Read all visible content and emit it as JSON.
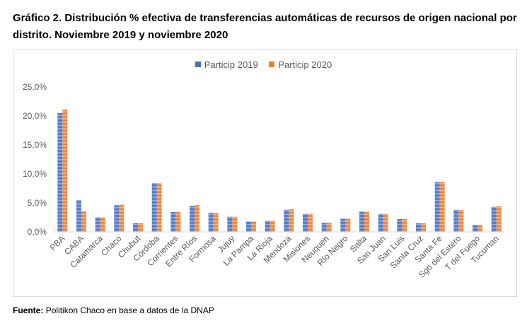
{
  "title": "Gráfico 2. Distribución % efectiva de transferencias automáticas de recursos de origen nacional por distrito. Noviembre 2019 y noviembre 2020",
  "source_label": "Fuente:",
  "source_text": "Politikon Chaco en base a datos de la DNAP",
  "colors": {
    "series_2019": "#4472c4",
    "series_2020": "#ed7d31",
    "axis": "#d9d9d9"
  },
  "chart_data": {
    "type": "bar",
    "title": "",
    "xlabel": "",
    "ylabel": "",
    "ylim": [
      0,
      25
    ],
    "yticks": [
      "0,0%",
      "5,0%",
      "10,0%",
      "15,0%",
      "20,0%",
      "25,0%"
    ],
    "grid": false,
    "legend_position": "top",
    "categories": [
      "PBA",
      "CABA",
      "Catamarca",
      "Chaco",
      "Chubut",
      "Córdoba",
      "Corrientes",
      "Entre Ríos",
      "Formosa",
      "Jujuy",
      "La Pampa",
      "La Rioja",
      "Mendoza",
      "Misiones",
      "Neuquen",
      "Río Negro",
      "Salta",
      "San Juan",
      "San Luis",
      "Santa Cruz",
      "Santa Fe",
      "Sgo del Estero",
      "T del Fuego",
      "Tucuman"
    ],
    "series": [
      {
        "name": "Particip 2019",
        "values": [
          20.5,
          5.5,
          2.5,
          4.6,
          1.5,
          8.4,
          3.4,
          4.5,
          3.3,
          2.6,
          1.8,
          1.9,
          3.8,
          3.1,
          1.6,
          2.3,
          3.5,
          3.1,
          2.2,
          1.5,
          8.6,
          3.8,
          1.2,
          4.3
        ]
      },
      {
        "name": "Particip 2020",
        "values": [
          21.1,
          3.6,
          2.5,
          4.7,
          1.5,
          8.4,
          3.4,
          4.6,
          3.3,
          2.6,
          1.8,
          1.9,
          3.9,
          3.1,
          1.6,
          2.3,
          3.5,
          3.1,
          2.2,
          1.5,
          8.6,
          3.8,
          1.2,
          4.4
        ]
      }
    ]
  }
}
